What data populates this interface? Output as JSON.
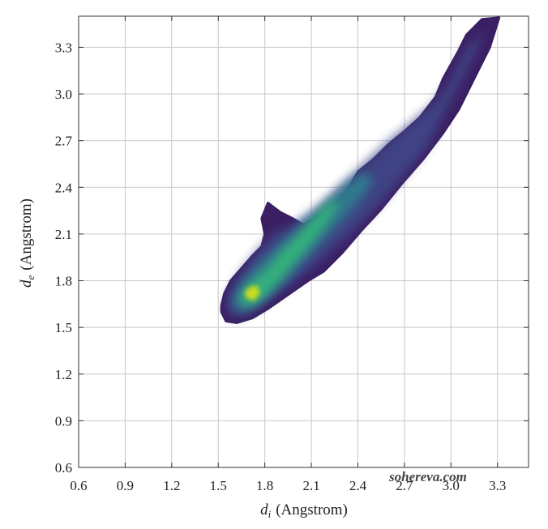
{
  "chart_data": {
    "type": "heatmap",
    "description_kind": "fingerprint-density-scatter",
    "xlabel": {
      "symbol": "d",
      "subscript": "i",
      "unit": "(Angstrom)"
    },
    "ylabel": {
      "symbol": "d",
      "subscript": "e",
      "unit": "(Angstrom)"
    },
    "xlim": [
      0.6,
      3.5
    ],
    "ylim": [
      0.6,
      3.5
    ],
    "xticks": [
      "0.6",
      "0.9",
      "1.2",
      "1.5",
      "1.8",
      "2.1",
      "2.4",
      "2.7",
      "3.0",
      "3.3"
    ],
    "yticks": [
      "0.6",
      "0.9",
      "1.2",
      "1.5",
      "1.8",
      "2.1",
      "2.4",
      "2.7",
      "3.0",
      "3.3"
    ],
    "xtick_values": [
      0.6,
      0.9,
      1.2,
      1.5,
      1.8,
      2.1,
      2.4,
      2.7,
      3.0,
      3.3
    ],
    "ytick_values": [
      0.6,
      0.9,
      1.2,
      1.5,
      1.8,
      2.1,
      2.4,
      2.7,
      3.0,
      3.3
    ],
    "grid": true,
    "colormap": "viridis",
    "colors": {
      "low": "#3b1f63",
      "mid_low": "#3f4a8a",
      "mid": "#2f7f8e",
      "mid_high": "#35b779",
      "high": "#d8e219",
      "grid": "#c8c8c8",
      "axis": "#333333"
    },
    "density_path": [
      [
        1.52,
        1.6
      ],
      [
        1.55,
        1.54
      ],
      [
        1.62,
        1.53
      ],
      [
        1.72,
        1.56
      ],
      [
        1.82,
        1.62
      ],
      [
        1.95,
        1.71
      ],
      [
        2.08,
        1.8
      ],
      [
        2.18,
        1.86
      ],
      [
        2.3,
        1.98
      ],
      [
        2.42,
        2.12
      ],
      [
        2.55,
        2.26
      ],
      [
        2.68,
        2.42
      ],
      [
        2.82,
        2.58
      ],
      [
        2.95,
        2.75
      ],
      [
        3.05,
        2.9
      ],
      [
        3.15,
        3.1
      ],
      [
        3.25,
        3.3
      ],
      [
        3.31,
        3.49
      ],
      [
        3.2,
        3.48
      ],
      [
        3.1,
        3.38
      ],
      [
        3.05,
        3.28
      ],
      [
        2.95,
        3.1
      ],
      [
        2.9,
        2.98
      ],
      [
        2.8,
        2.85
      ],
      [
        2.7,
        2.76
      ],
      [
        2.6,
        2.68
      ],
      [
        2.5,
        2.58
      ],
      [
        2.4,
        2.5
      ],
      [
        2.33,
        2.38
      ],
      [
        2.25,
        2.3
      ],
      [
        2.15,
        2.22
      ],
      [
        2.05,
        2.16
      ],
      [
        1.98,
        2.2
      ],
      [
        1.9,
        2.24
      ],
      [
        1.82,
        2.3
      ],
      [
        1.78,
        2.2
      ],
      [
        1.8,
        2.1
      ],
      [
        1.78,
        2.02
      ],
      [
        1.72,
        1.96
      ],
      [
        1.65,
        1.88
      ],
      [
        1.58,
        1.8
      ],
      [
        1.54,
        1.72
      ],
      [
        1.52,
        1.64
      ]
    ],
    "density_bands": [
      {
        "level": "mid_low",
        "path": [
          [
            1.56,
            1.6
          ],
          [
            1.62,
            1.56
          ],
          [
            1.75,
            1.62
          ],
          [
            1.95,
            1.76
          ],
          [
            2.15,
            1.92
          ],
          [
            2.35,
            2.1
          ],
          [
            2.55,
            2.3
          ],
          [
            2.7,
            2.48
          ],
          [
            2.85,
            2.66
          ],
          [
            2.95,
            2.86
          ],
          [
            3.05,
            3.05
          ],
          [
            3.15,
            3.25
          ],
          [
            3.22,
            3.42
          ],
          [
            3.1,
            3.3
          ],
          [
            3.0,
            3.1
          ],
          [
            2.9,
            2.95
          ],
          [
            2.75,
            2.82
          ],
          [
            2.6,
            2.7
          ],
          [
            2.45,
            2.56
          ],
          [
            2.3,
            2.42
          ],
          [
            2.15,
            2.28
          ],
          [
            1.98,
            2.16
          ],
          [
            1.85,
            2.1
          ],
          [
            1.72,
            1.95
          ],
          [
            1.62,
            1.82
          ],
          [
            1.56,
            1.7
          ]
        ]
      },
      {
        "level": "mid",
        "path": [
          [
            1.6,
            1.62
          ],
          [
            1.68,
            1.6
          ],
          [
            1.8,
            1.68
          ],
          [
            1.95,
            1.82
          ],
          [
            2.1,
            1.98
          ],
          [
            2.25,
            2.14
          ],
          [
            2.4,
            2.3
          ],
          [
            2.5,
            2.44
          ],
          [
            2.45,
            2.5
          ],
          [
            2.32,
            2.42
          ],
          [
            2.18,
            2.28
          ],
          [
            2.02,
            2.14
          ],
          [
            1.88,
            2.02
          ],
          [
            1.75,
            1.9
          ],
          [
            1.65,
            1.78
          ],
          [
            1.6,
            1.7
          ]
        ]
      },
      {
        "level": "mid_high",
        "path": [
          [
            1.64,
            1.66
          ],
          [
            1.72,
            1.64
          ],
          [
            1.82,
            1.72
          ],
          [
            1.96,
            1.88
          ],
          [
            2.1,
            2.04
          ],
          [
            2.22,
            2.2
          ],
          [
            2.28,
            2.32
          ],
          [
            2.2,
            2.3
          ],
          [
            2.06,
            2.14
          ],
          [
            1.92,
            2.0
          ],
          [
            1.8,
            1.86
          ],
          [
            1.7,
            1.78
          ],
          [
            1.65,
            1.72
          ]
        ]
      },
      {
        "level": "high",
        "path": [
          [
            1.68,
            1.69
          ],
          [
            1.73,
            1.67
          ],
          [
            1.77,
            1.72
          ],
          [
            1.75,
            1.77
          ],
          [
            1.7,
            1.76
          ],
          [
            1.67,
            1.73
          ]
        ]
      }
    ]
  },
  "watermark": "sohereva.com"
}
